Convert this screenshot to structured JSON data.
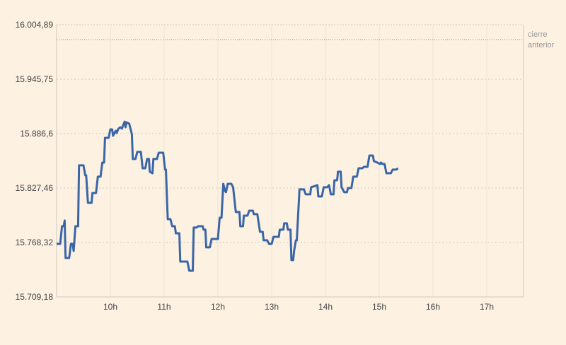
{
  "chart_data": {
    "type": "line",
    "title": "",
    "xlabel": "",
    "ylabel": "",
    "xlim": [
      "9:00",
      "17:40"
    ],
    "ylim": [
      15709.18,
      16004.89
    ],
    "y_ticks": [
      "16.004,89",
      "15.945,75",
      "15.886,6",
      "15.827,46",
      "15.768,32",
      "15.709,18"
    ],
    "y_tick_values": [
      16004.89,
      15945.75,
      15886.6,
      15827.46,
      15768.32,
      15709.18
    ],
    "x_ticks": [
      "10h",
      "11h",
      "12h",
      "13h",
      "14h",
      "15h",
      "16h",
      "17h"
    ],
    "x_tick_values": [
      10,
      11,
      12,
      13,
      14,
      15,
      16,
      17
    ],
    "grid": {
      "horizontal": true,
      "vertical": true
    },
    "reference_line": {
      "label_line1": "cierre",
      "label_line2": "anterior",
      "value": 15988.8
    },
    "colors": {
      "background": "#fdf1e2",
      "line": "#3a66a8",
      "grid": "#cfc8bf",
      "reference": "#888888"
    },
    "series": [
      {
        "points": [
          [
            "9:00",
            15766.8
          ],
          [
            "9:04",
            15766.8
          ],
          [
            "9:06",
            15786.0
          ],
          [
            "9:08",
            15786.0
          ],
          [
            "9:09",
            15792.2
          ],
          [
            "9:10",
            15751.5
          ],
          [
            "9:14",
            15751.5
          ],
          [
            "9:16",
            15766.8
          ],
          [
            "9:18",
            15766.8
          ],
          [
            "9:19",
            15759.1
          ],
          [
            "9:21",
            15786.0
          ],
          [
            "9:24",
            15786.0
          ],
          [
            "9:25",
            15852.1
          ],
          [
            "9:30",
            15852.1
          ],
          [
            "9:32",
            15841.3
          ],
          [
            "9:33",
            15841.3
          ],
          [
            "9:35",
            15811.4
          ],
          [
            "9:39",
            15811.4
          ],
          [
            "9:40",
            15822.1
          ],
          [
            "9:44",
            15822.1
          ],
          [
            "9:46",
            15839.8
          ],
          [
            "9:49",
            15839.8
          ],
          [
            "9:51",
            15855.1
          ],
          [
            "9:53",
            15855.1
          ],
          [
            "9:54",
            15882.0
          ],
          [
            "9:58",
            15882.0
          ],
          [
            "10:00",
            15891.2
          ],
          [
            "10:02",
            15891.2
          ],
          [
            "10:03",
            15884.3
          ],
          [
            "10:06",
            15889.7
          ],
          [
            "10:07",
            15887.4
          ],
          [
            "10:09",
            15892.0
          ],
          [
            "10:11",
            15893.5
          ],
          [
            "10:13",
            15892.0
          ],
          [
            "10:14",
            15895.1
          ],
          [
            "10:16",
            15899.7
          ],
          [
            "10:17",
            15893.5
          ],
          [
            "10:18",
            15898.9
          ],
          [
            "10:21",
            15897.4
          ],
          [
            "10:24",
            15885.9
          ],
          [
            "10:25",
            15859.0
          ],
          [
            "10:28",
            15859.0
          ],
          [
            "10:30",
            15866.7
          ],
          [
            "10:34",
            15866.7
          ],
          [
            "10:36",
            15849.0
          ],
          [
            "10:39",
            15849.0
          ],
          [
            "10:41",
            15859.0
          ],
          [
            "10:43",
            15859.0
          ],
          [
            "10:44",
            15845.2
          ],
          [
            "10:47",
            15843.6
          ],
          [
            "10:48",
            15859.0
          ],
          [
            "10:52",
            15859.0
          ],
          [
            "10:54",
            15865.9
          ],
          [
            "10:59",
            15865.9
          ],
          [
            "11:01",
            15847.5
          ],
          [
            "11:02",
            15847.5
          ],
          [
            "11:04",
            15793.7
          ],
          [
            "11:07",
            15793.7
          ],
          [
            "11:09",
            15786.0
          ],
          [
            "11:12",
            15786.0
          ],
          [
            "11:13",
            15778.3
          ],
          [
            "11:17",
            15778.3
          ],
          [
            "11:18",
            15747.6
          ],
          [
            "11:26",
            15747.6
          ],
          [
            "11:28",
            15737.6
          ],
          [
            "11:32",
            15737.6
          ],
          [
            "11:33",
            15784.5
          ],
          [
            "11:36",
            15784.5
          ],
          [
            "11:38",
            15786.0
          ],
          [
            "11:43",
            15786.0
          ],
          [
            "11:44",
            15782.2
          ],
          [
            "11:46",
            15782.2
          ],
          [
            "11:47",
            15763.0
          ],
          [
            "11:51",
            15763.0
          ],
          [
            "11:53",
            15772.2
          ],
          [
            "12:00",
            15772.2
          ],
          [
            "12:02",
            15795.2
          ],
          [
            "12:04",
            15795.2
          ],
          [
            "12:06",
            15832.1
          ],
          [
            "12:08",
            15824.4
          ],
          [
            "12:09",
            15822.9
          ],
          [
            "12:11",
            15832.1
          ],
          [
            "12:15",
            15832.1
          ],
          [
            "12:17",
            15828.3
          ],
          [
            "12:20",
            15801.4
          ],
          [
            "12:24",
            15801.4
          ],
          [
            "12:25",
            15786.0
          ],
          [
            "12:28",
            15786.0
          ],
          [
            "12:29",
            15797.5
          ],
          [
            "12:33",
            15797.5
          ],
          [
            "12:35",
            15802.9
          ],
          [
            "12:39",
            15802.9
          ],
          [
            "12:40",
            15799.1
          ],
          [
            "12:44",
            15799.1
          ],
          [
            "12:47",
            15779.9
          ],
          [
            "12:50",
            15779.9
          ],
          [
            "12:51",
            15770.7
          ],
          [
            "12:55",
            15770.7
          ],
          [
            "12:57",
            15766.8
          ],
          [
            "13:00",
            15766.8
          ],
          [
            "13:02",
            15774.5
          ],
          [
            "13:08",
            15774.5
          ],
          [
            "13:09",
            15782.2
          ],
          [
            "13:13",
            15782.2
          ],
          [
            "13:14",
            15789.1
          ],
          [
            "13:17",
            15789.1
          ],
          [
            "13:18",
            15782.2
          ],
          [
            "13:21",
            15782.2
          ],
          [
            "13:22",
            15749.2
          ],
          [
            "13:24",
            15749.2
          ],
          [
            "13:25",
            15759.1
          ],
          [
            "13:27",
            15770.7
          ],
          [
            "13:28",
            15770.7
          ],
          [
            "13:31",
            15826.0
          ],
          [
            "13:36",
            15826.0
          ],
          [
            "13:38",
            15820.6
          ],
          [
            "13:43",
            15820.6
          ],
          [
            "13:44",
            15828.3
          ],
          [
            "13:51",
            15830.6
          ],
          [
            "13:52",
            15818.3
          ],
          [
            "13:56",
            15818.3
          ],
          [
            "13:58",
            15828.3
          ],
          [
            "14:02",
            15828.3
          ],
          [
            "14:04",
            15830.6
          ],
          [
            "14:06",
            15820.6
          ],
          [
            "14:09",
            15820.6
          ],
          [
            "14:10",
            15835.9
          ],
          [
            "14:13",
            15835.9
          ],
          [
            "14:14",
            15845.2
          ],
          [
            "14:17",
            15845.2
          ],
          [
            "14:18",
            15828.3
          ],
          [
            "14:21",
            15822.9
          ],
          [
            "14:24",
            15822.9
          ],
          [
            "14:25",
            15827.5
          ],
          [
            "14:29",
            15827.5
          ],
          [
            "14:31",
            15839.8
          ],
          [
            "14:35",
            15839.8
          ],
          [
            "14:37",
            15849.0
          ],
          [
            "14:41",
            15849.0
          ],
          [
            "14:43",
            15850.5
          ],
          [
            "14:47",
            15850.5
          ],
          [
            "14:49",
            15862.8
          ],
          [
            "14:53",
            15862.8
          ],
          [
            "14:54",
            15856.7
          ],
          [
            "14:58",
            15855.1
          ],
          [
            "15:01",
            15853.6
          ],
          [
            "15:02",
            15855.1
          ],
          [
            "15:04",
            15853.6
          ],
          [
            "15:06",
            15853.6
          ],
          [
            "15:08",
            15843.6
          ],
          [
            "15:13",
            15843.6
          ],
          [
            "15:15",
            15847.5
          ],
          [
            "15:19",
            15847.5
          ],
          [
            "15:21",
            15849.0
          ]
        ]
      }
    ]
  }
}
